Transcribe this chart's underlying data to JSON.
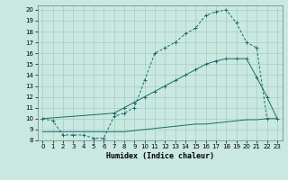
{
  "xlabel": "Humidex (Indice chaleur)",
  "bg_color": "#c8e8e0",
  "line_color": "#1a6b6b",
  "grid_color": "#a8ccc8",
  "xlim": [
    -0.5,
    23.5
  ],
  "ylim": [
    8.0,
    20.4
  ],
  "yticks": [
    8,
    9,
    10,
    11,
    12,
    13,
    14,
    15,
    16,
    17,
    18,
    19,
    20
  ],
  "xticks": [
    0,
    1,
    2,
    3,
    4,
    5,
    6,
    7,
    8,
    9,
    10,
    11,
    12,
    13,
    14,
    15,
    16,
    17,
    18,
    19,
    20,
    21,
    22,
    23
  ],
  "line1_x": [
    0,
    1,
    2,
    3,
    4,
    5,
    6,
    7,
    8,
    9,
    10,
    11,
    12,
    13,
    14,
    15,
    16,
    17,
    18,
    19,
    20,
    21,
    22
  ],
  "line1_y": [
    10,
    9.8,
    8.5,
    8.5,
    8.5,
    8.2,
    8.2,
    10.2,
    10.5,
    11.0,
    13.5,
    16.0,
    16.5,
    17.0,
    17.8,
    18.3,
    19.5,
    19.8,
    20.0,
    18.8,
    17.0,
    16.5,
    10.0
  ],
  "line2_x": [
    0,
    7,
    8,
    9,
    10,
    11,
    12,
    13,
    14,
    15,
    16,
    17,
    18,
    19,
    20,
    21,
    22,
    23
  ],
  "line2_y": [
    10,
    10.5,
    11.0,
    11.5,
    12.0,
    12.5,
    13.0,
    13.5,
    14.0,
    14.5,
    15.0,
    15.3,
    15.5,
    15.5,
    15.5,
    13.8,
    12.0,
    10.0
  ],
  "line3_x": [
    0,
    1,
    2,
    3,
    4,
    5,
    6,
    7,
    8,
    9,
    10,
    11,
    12,
    13,
    14,
    15,
    16,
    17,
    18,
    19,
    20,
    21,
    22,
    23
  ],
  "line3_y": [
    8.8,
    8.8,
    8.8,
    8.8,
    8.8,
    8.8,
    8.8,
    8.8,
    8.8,
    8.9,
    9.0,
    9.1,
    9.2,
    9.3,
    9.4,
    9.5,
    9.5,
    9.6,
    9.7,
    9.8,
    9.9,
    9.9,
    10.0,
    10.0
  ]
}
